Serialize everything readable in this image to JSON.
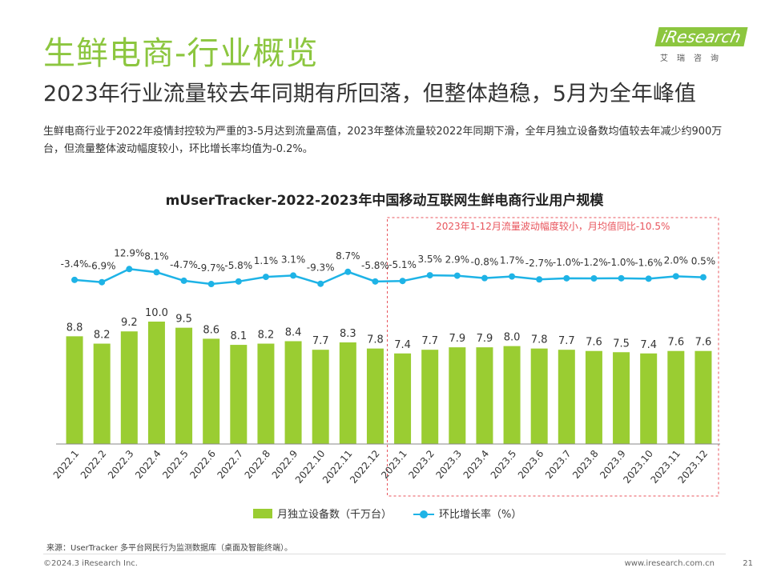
{
  "header": {
    "title": "生鲜电商-行业概览",
    "subtitle": "2023年行业流量较去年同期有所回落，但整体趋稳，5月为全年峰值",
    "description": "生鲜电商行业于2022年疫情封控较为严重的3-5月达到流量高值，2023年整体流量较2022年同期下滑，全年月独立设备数均值较去年减少约900万台，但流量整体波动幅度较小，环比增长率均值为-0.2%。"
  },
  "logo": {
    "name": "iResearch",
    "sub": "艾瑞咨询"
  },
  "chart_data": {
    "type": "bar",
    "title": "mUserTracker-2022-2023年中国移动互联网生鲜电商行业用户规模",
    "categories": [
      "2022.1",
      "2022.2",
      "2022.3",
      "2022.4",
      "2022.5",
      "2022.6",
      "2022.7",
      "2022.8",
      "2022.9",
      "2022.10",
      "2022.11",
      "2022.12",
      "2023.1",
      "2023.2",
      "2023.3",
      "2023.4",
      "2023.5",
      "2023.6",
      "2023.7",
      "2023.8",
      "2023.9",
      "2023.10",
      "2023.11",
      "2023.12"
    ],
    "series": [
      {
        "name": "月独立设备数（千万台）",
        "type": "bar",
        "color": "#9acd32",
        "values": [
          8.8,
          8.2,
          9.2,
          10.0,
          9.5,
          8.6,
          8.1,
          8.2,
          8.4,
          7.7,
          8.3,
          7.8,
          7.4,
          7.7,
          7.9,
          7.9,
          8.0,
          7.8,
          7.7,
          7.6,
          7.5,
          7.4,
          7.6,
          7.6
        ]
      },
      {
        "name": "环比增长率（%）",
        "type": "line",
        "color": "#1eb3e6",
        "values": [
          -3.4,
          -6.9,
          12.9,
          8.1,
          -4.7,
          -9.7,
          -5.8,
          1.1,
          3.1,
          -9.3,
          8.7,
          -5.8,
          -5.1,
          3.5,
          2.9,
          -0.8,
          1.7,
          -2.7,
          -1.0,
          -1.2,
          -1.0,
          -1.6,
          2.0,
          0.5
        ],
        "labels": [
          "-3.4%",
          "-6.9%",
          "12.9%",
          "8.1%",
          "-4.7%",
          "-9.7%",
          "-5.8%",
          "1.1%",
          "3.1%",
          "-9.3%",
          "8.7%",
          "-5.8%",
          "-5.1%",
          "3.5%",
          "2.9%",
          "-0.8%",
          "1.7%",
          "-2.7%",
          "-1.0%",
          "-1.2%",
          "-1.0%",
          "-1.6%",
          "2.0%",
          "0.5%"
        ]
      }
    ],
    "annotation": {
      "text": "2023年1-12月流量波动幅度较小，月均值同比-10.5%",
      "range": [
        "2023.1",
        "2023.12"
      ],
      "color": "#e8555d"
    }
  },
  "legend": {
    "bar_label": "月独立设备数（千万台）",
    "line_label": "环比增长率（%）"
  },
  "footer": {
    "source": "来源：UserTracker 多平台网民行为监测数据库（桌面及智能终端）。",
    "copyright": "©2024.3 iResearch Inc.",
    "site": "www.iresearch.com.cn",
    "page": "21"
  }
}
